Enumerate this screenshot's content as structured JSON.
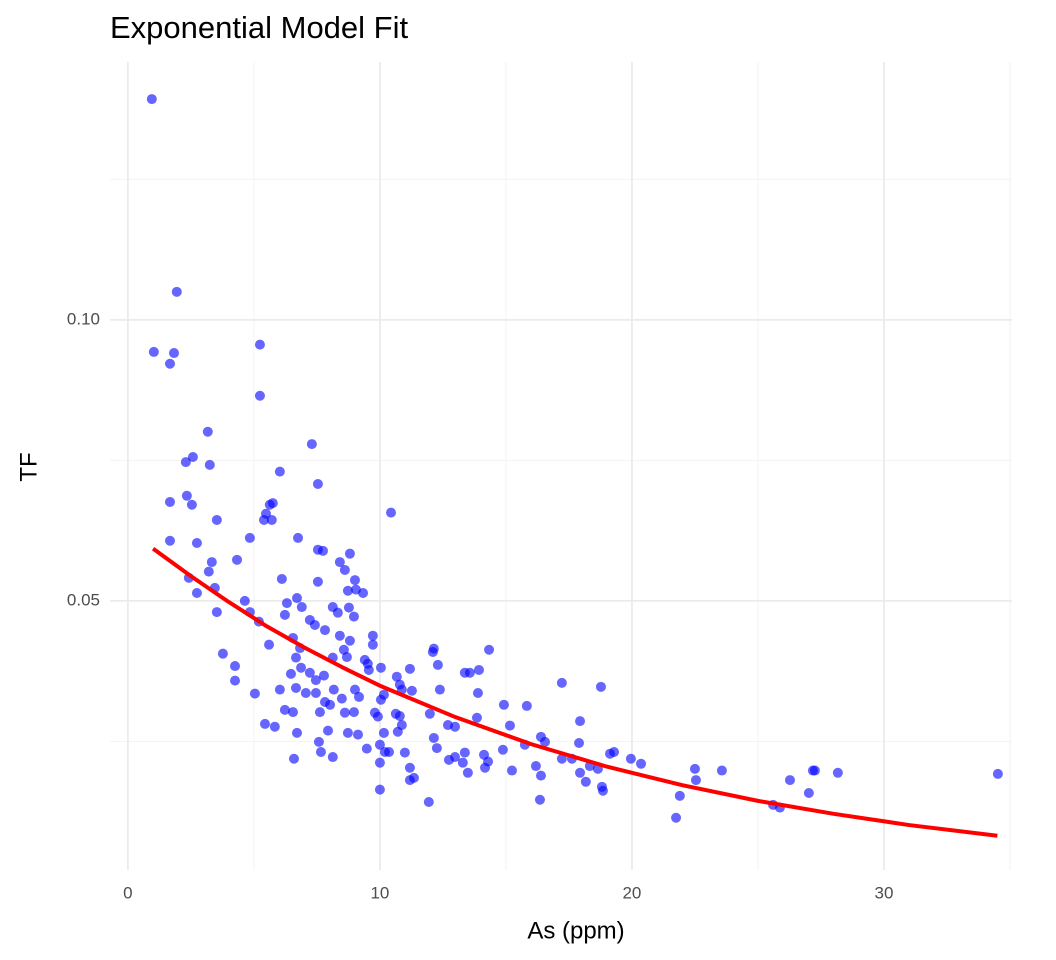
{
  "chart_data": {
    "type": "scatter",
    "title": "Exponential Model Fit",
    "xlabel": "As (ppm)",
    "ylabel": "TF",
    "color": "#0000ff",
    "x": [
      0.95,
      1.03,
      1.83,
      1.67,
      1.94,
      5.24,
      5.24,
      3.17,
      2.3,
      2.58,
      3.25,
      7.3,
      6.03,
      7.54,
      1.67,
      2.54,
      2.34,
      3.53,
      5.48,
      5.63,
      5.75,
      5.4,
      5.71,
      10.44,
      1.67,
      2.74,
      4.84,
      6.75,
      7.54,
      7.74,
      4.33,
      3.33,
      3.21,
      2.42,
      2.74,
      3.45,
      3.53,
      8.81,
      8.41,
      8.61,
      9.01,
      9.05,
      8.73,
      6.11,
      7.54,
      4.64,
      4.84,
      5.2,
      6.71,
      6.9,
      6.31,
      6.23,
      8.13,
      8.33,
      8.77,
      8.97,
      9.33,
      7.22,
      7.42,
      7.82,
      6.55,
      6.83,
      5.6,
      8.41,
      8.57,
      8.81,
      9.72,
      9.72,
      9.4,
      3.77,
      4.25,
      4.25,
      5.04,
      5.44,
      5.83,
      6.03,
      6.23,
      6.55,
      6.67,
      6.87,
      6.47,
      7.22,
      7.46,
      7.78,
      8.13,
      8.69,
      9.52,
      9.56,
      6.67,
      7.06,
      7.46,
      7.62,
      8.02,
      7.82,
      8.17,
      9.01,
      9.17,
      8.97,
      8.49,
      8.61,
      8.73,
      7.94,
      7.66,
      8.13,
      7.58,
      6.71,
      6.59,
      9.13,
      9.48,
      9.8,
      9.92,
      10.04,
      10.04,
      10.16,
      10.67,
      10.79,
      10.87,
      11.19,
      11.27,
      10.63,
      10.79,
      10.87,
      10.0,
      10.0,
      10.16,
      10.2,
      10.36,
      10.71,
      10.99,
      11.19,
      11.35,
      11.19,
      10.0,
      11.98,
      12.14,
      12.26,
      12.1,
      12.3,
      12.14,
      12.38,
      12.7,
      12.98,
      12.74,
      12.98,
      13.29,
      13.49,
      13.37,
      11.94,
      13.37,
      13.57,
      13.93,
      14.33,
      13.89,
      13.85,
      14.13,
      14.17,
      14.29,
      14.92,
      15.16,
      14.88,
      15.24,
      15.75,
      15.83,
      16.19,
      16.39,
      16.55,
      16.39,
      16.35,
      17.22,
      17.22,
      17.62,
      17.94,
      17.9,
      17.94,
      18.17,
      18.33,
      18.65,
      18.77,
      18.81,
      18.85,
      19.13,
      19.29,
      19.96,
      20.36,
      21.9,
      21.75,
      22.5,
      22.54,
      23.57,
      25.6,
      25.87,
      26.27,
      27.02,
      27.18,
      27.26,
      28.17,
      34.52
    ],
    "values": [
      0.1393,
      0.0943,
      0.0941,
      0.0922,
      0.105,
      0.0956,
      0.0865,
      0.0801,
      0.0747,
      0.0756,
      0.0742,
      0.0779,
      0.073,
      0.0708,
      0.0676,
      0.0671,
      0.0687,
      0.0644,
      0.0655,
      0.0671,
      0.0674,
      0.0644,
      0.0644,
      0.0657,
      0.0607,
      0.0603,
      0.0612,
      0.0612,
      0.0591,
      0.0589,
      0.0573,
      0.0569,
      0.0552,
      0.0541,
      0.0514,
      0.0523,
      0.048,
      0.0584,
      0.0569,
      0.0555,
      0.0537,
      0.052,
      0.0518,
      0.0539,
      0.0534,
      0.05,
      0.048,
      0.0463,
      0.0505,
      0.0489,
      0.0496,
      0.0475,
      0.0489,
      0.0479,
      0.0488,
      0.0472,
      0.0514,
      0.0466,
      0.0457,
      0.0448,
      0.0434,
      0.0416,
      0.0422,
      0.0438,
      0.0413,
      0.0429,
      0.0438,
      0.0422,
      0.0395,
      0.0406,
      0.0384,
      0.0358,
      0.0335,
      0.0281,
      0.0276,
      0.0342,
      0.0306,
      0.0302,
      0.0399,
      0.0381,
      0.037,
      0.0372,
      0.0359,
      0.0367,
      0.0399,
      0.04,
      0.0388,
      0.0377,
      0.0345,
      0.0336,
      0.0336,
      0.0302,
      0.0315,
      0.032,
      0.0342,
      0.0342,
      0.0329,
      0.0302,
      0.0326,
      0.0301,
      0.0265,
      0.0269,
      0.0231,
      0.0222,
      0.0249,
      0.0265,
      0.0219,
      0.0262,
      0.0237,
      0.0301,
      0.0294,
      0.0324,
      0.0381,
      0.0333,
      0.0365,
      0.0351,
      0.0342,
      0.0379,
      0.034,
      0.0299,
      0.0295,
      0.0279,
      0.0244,
      0.0212,
      0.0265,
      0.0231,
      0.0231,
      0.0267,
      0.023,
      0.0203,
      0.0185,
      0.0181,
      0.0164,
      0.0299,
      0.0256,
      0.0238,
      0.0409,
      0.0386,
      0.0415,
      0.0342,
      0.0279,
      0.0276,
      0.0217,
      0.0222,
      0.0212,
      0.0194,
      0.023,
      0.0142,
      0.0372,
      0.0372,
      0.0377,
      0.0413,
      0.0336,
      0.0292,
      0.0226,
      0.0203,
      0.0214,
      0.0315,
      0.0278,
      0.0235,
      0.0198,
      0.0244,
      0.0313,
      0.0206,
      0.0258,
      0.0249,
      0.0189,
      0.0146,
      0.0354,
      0.0219,
      0.0219,
      0.0286,
      0.0247,
      0.0194,
      0.0178,
      0.0206,
      0.0201,
      0.0347,
      0.0169,
      0.0162,
      0.0228,
      0.0231,
      0.0219,
      0.021,
      0.0153,
      0.0114,
      0.0201,
      0.0181,
      0.0198,
      0.0137,
      0.0132,
      0.0181,
      0.0158,
      0.0198,
      0.0198,
      0.0194,
      0.0192
    ],
    "fit": {
      "color": "#ff0000",
      "x": [
        1,
        2.5,
        4,
        5.5,
        7,
        8.5,
        10,
        13,
        16,
        19,
        22,
        25,
        28,
        31,
        34.5
      ],
      "values": [
        0.0593,
        0.0544,
        0.0498,
        0.0455,
        0.0417,
        0.0382,
        0.0349,
        0.0293,
        0.0245,
        0.0205,
        0.0172,
        0.0144,
        0.0121,
        0.0101,
        0.0082
      ]
    },
    "xlim": [
      -0.71,
      35.08
    ],
    "ylim": [
      0.0021,
      0.1459
    ],
    "xticks": [
      0,
      10,
      20,
      30
    ],
    "yticks": [
      {
        "value": 0.05,
        "label": "0.05"
      },
      {
        "value": 0.1,
        "label": "0.10"
      }
    ],
    "xminor": [
      5,
      15,
      25,
      35
    ],
    "yminor": [
      0.025,
      0.075,
      0.125
    ],
    "grid": true
  }
}
